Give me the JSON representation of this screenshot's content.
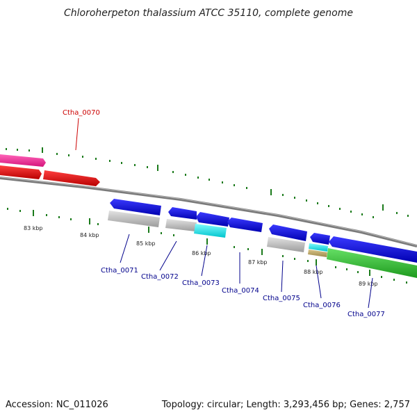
{
  "title": "Chloroherpeton thalassium ATCC 35110, complete genome",
  "footer": {
    "accession": "Accession: NC_011026",
    "stats": "Topology: circular; Length: 3,293,456 bp; Genes: 2,757"
  },
  "colors": {
    "backbone": "#7a7a7a",
    "tick": "#1a7a1a",
    "label_forward": "#cc0000",
    "label_reverse": "#00008b"
  },
  "scale_labels": [
    "83 kbp",
    "84 kbp",
    "85 kbp",
    "86 kbp",
    "87 kbp",
    "88 kbp",
    "89 kbp"
  ],
  "gene_labels": [
    {
      "name": "Ctha_0070",
      "strand": "forward"
    },
    {
      "name": "Ctha_0071",
      "strand": "reverse"
    },
    {
      "name": "Ctha_0072",
      "strand": "reverse"
    },
    {
      "name": "Ctha_0073",
      "strand": "reverse"
    },
    {
      "name": "Ctha_0074",
      "strand": "reverse"
    },
    {
      "name": "Ctha_0075",
      "strand": "reverse"
    },
    {
      "name": "Ctha_0076",
      "strand": "reverse"
    },
    {
      "name": "Ctha_0077",
      "strand": "reverse"
    }
  ]
}
